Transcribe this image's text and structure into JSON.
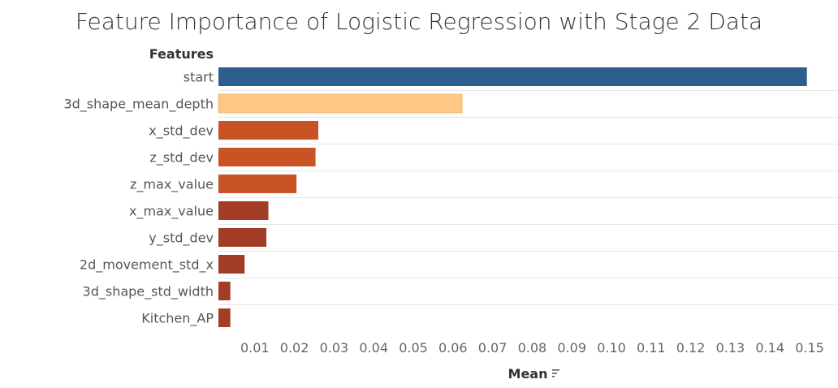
{
  "chart_data": {
    "type": "bar",
    "orientation": "horizontal",
    "title": "Feature Importance of Logistic Regression with Stage 2 Data",
    "ylabel": "Features",
    "xlabel": "Mean",
    "categories": [
      "start",
      "3d_shape_mean_depth",
      "x_std_dev",
      "z_std_dev",
      "z_max_value",
      "x_max_value",
      "y_std_dev",
      "2d_movement_std_x",
      "3d_shape_std_width",
      "Kitchen_AP"
    ],
    "values": [
      0.1485,
      0.0615,
      0.0252,
      0.0245,
      0.0197,
      0.0126,
      0.0121,
      0.0066,
      0.003,
      0.003
    ],
    "colors": [
      "#2c5f8d",
      "#ffc786",
      "#c85425",
      "#c85425",
      "#c85425",
      "#a23c25",
      "#a23c25",
      "#a23c25",
      "#a23c25",
      "#a23c25"
    ],
    "xlim": [
      0,
      0.15
    ],
    "xticks": [
      0.01,
      0.02,
      0.03,
      0.04,
      0.05,
      0.06,
      0.07,
      0.08,
      0.09,
      0.1,
      0.11,
      0.12,
      0.13,
      0.14,
      0.15
    ],
    "xtick_labels": [
      "0.01",
      "0.02",
      "0.03",
      "0.04",
      "0.05",
      "0.06",
      "0.07",
      "0.08",
      "0.09",
      "0.10",
      "0.11",
      "0.12",
      "0.13",
      "0.14",
      "0.15"
    ],
    "grid": false,
    "sort_icon": "sort-descending-icon"
  }
}
